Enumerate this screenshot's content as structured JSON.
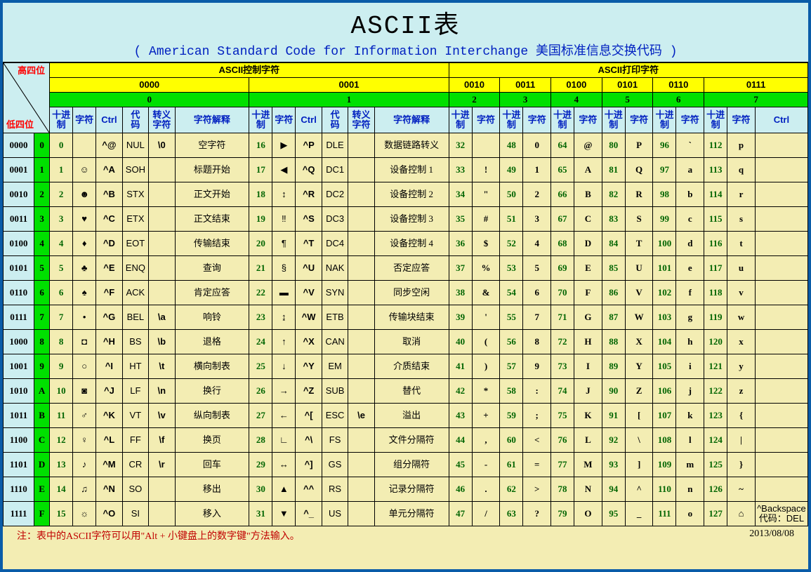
{
  "title": "ASCII表",
  "subtitle": "( American Standard Code for Information Interchange  美国标准信息交换代码 )",
  "corner": {
    "high": "高四位",
    "low": "低四位"
  },
  "sections": {
    "control_label": "ASCII控制字符",
    "print_label": "ASCII打印字符",
    "bin_groups": [
      "0000",
      "0001",
      "0010",
      "0011",
      "0100",
      "0101",
      "0110",
      "0111"
    ],
    "hex_groups": [
      "0",
      "1",
      "2",
      "3",
      "4",
      "5",
      "6",
      "7"
    ]
  },
  "col_headers": {
    "dec": "十进制",
    "char": "字符",
    "ctrl": "Ctrl",
    "code": "代码",
    "esc": "转义字符",
    "desc": "字符解释"
  },
  "row_headers": [
    {
      "bin": "0000",
      "hex": "0"
    },
    {
      "bin": "0001",
      "hex": "1"
    },
    {
      "bin": "0010",
      "hex": "2"
    },
    {
      "bin": "0011",
      "hex": "3"
    },
    {
      "bin": "0100",
      "hex": "4"
    },
    {
      "bin": "0101",
      "hex": "5"
    },
    {
      "bin": "0110",
      "hex": "6"
    },
    {
      "bin": "0111",
      "hex": "7"
    },
    {
      "bin": "1000",
      "hex": "8"
    },
    {
      "bin": "1001",
      "hex": "9"
    },
    {
      "bin": "1010",
      "hex": "A"
    },
    {
      "bin": "1011",
      "hex": "B"
    },
    {
      "bin": "1100",
      "hex": "C"
    },
    {
      "bin": "1101",
      "hex": "D"
    },
    {
      "bin": "1110",
      "hex": "E"
    },
    {
      "bin": "1111",
      "hex": "F"
    }
  ],
  "ctrl0": [
    {
      "dec": "0",
      "ch": "",
      "ctrl": "^@",
      "code": "NUL",
      "esc": "\\0",
      "desc": "空字符"
    },
    {
      "dec": "1",
      "ch": "☺",
      "ctrl": "^A",
      "code": "SOH",
      "esc": "",
      "desc": "标题开始"
    },
    {
      "dec": "2",
      "ch": "☻",
      "ctrl": "^B",
      "code": "STX",
      "esc": "",
      "desc": "正文开始"
    },
    {
      "dec": "3",
      "ch": "♥",
      "ctrl": "^C",
      "code": "ETX",
      "esc": "",
      "desc": "正文结束"
    },
    {
      "dec": "4",
      "ch": "♦",
      "ctrl": "^D",
      "code": "EOT",
      "esc": "",
      "desc": "传输结束"
    },
    {
      "dec": "5",
      "ch": "♣",
      "ctrl": "^E",
      "code": "ENQ",
      "esc": "",
      "desc": "查询"
    },
    {
      "dec": "6",
      "ch": "♠",
      "ctrl": "^F",
      "code": "ACK",
      "esc": "",
      "desc": "肯定应答"
    },
    {
      "dec": "7",
      "ch": "•",
      "ctrl": "^G",
      "code": "BEL",
      "esc": "\\a",
      "desc": "响铃"
    },
    {
      "dec": "8",
      "ch": "◘",
      "ctrl": "^H",
      "code": "BS",
      "esc": "\\b",
      "desc": "退格"
    },
    {
      "dec": "9",
      "ch": "○",
      "ctrl": "^I",
      "code": "HT",
      "esc": "\\t",
      "desc": "横向制表"
    },
    {
      "dec": "10",
      "ch": "◙",
      "ctrl": "^J",
      "code": "LF",
      "esc": "\\n",
      "desc": "换行"
    },
    {
      "dec": "11",
      "ch": "♂",
      "ctrl": "^K",
      "code": "VT",
      "esc": "\\v",
      "desc": "纵向制表"
    },
    {
      "dec": "12",
      "ch": "♀",
      "ctrl": "^L",
      "code": "FF",
      "esc": "\\f",
      "desc": "换页"
    },
    {
      "dec": "13",
      "ch": "♪",
      "ctrl": "^M",
      "code": "CR",
      "esc": "\\r",
      "desc": "回车"
    },
    {
      "dec": "14",
      "ch": "♫",
      "ctrl": "^N",
      "code": "SO",
      "esc": "",
      "desc": "移出"
    },
    {
      "dec": "15",
      "ch": "☼",
      "ctrl": "^O",
      "code": "SI",
      "esc": "",
      "desc": "移入"
    }
  ],
  "ctrl1": [
    {
      "dec": "16",
      "ch": "▶",
      "ctrl": "^P",
      "code": "DLE",
      "esc": "",
      "desc": "数据链路转义"
    },
    {
      "dec": "17",
      "ch": "◀",
      "ctrl": "^Q",
      "code": "DC1",
      "esc": "",
      "desc": "设备控制 1"
    },
    {
      "dec": "18",
      "ch": "↕",
      "ctrl": "^R",
      "code": "DC2",
      "esc": "",
      "desc": "设备控制 2"
    },
    {
      "dec": "19",
      "ch": "‼",
      "ctrl": "^S",
      "code": "DC3",
      "esc": "",
      "desc": "设备控制 3"
    },
    {
      "dec": "20",
      "ch": "¶",
      "ctrl": "^T",
      "code": "DC4",
      "esc": "",
      "desc": "设备控制 4"
    },
    {
      "dec": "21",
      "ch": "§",
      "ctrl": "^U",
      "code": "NAK",
      "esc": "",
      "desc": "否定应答"
    },
    {
      "dec": "22",
      "ch": "▬",
      "ctrl": "^V",
      "code": "SYN",
      "esc": "",
      "desc": "同步空闲"
    },
    {
      "dec": "23",
      "ch": "↨",
      "ctrl": "^W",
      "code": "ETB",
      "esc": "",
      "desc": "传输块结束"
    },
    {
      "dec": "24",
      "ch": "↑",
      "ctrl": "^X",
      "code": "CAN",
      "esc": "",
      "desc": "取消"
    },
    {
      "dec": "25",
      "ch": "↓",
      "ctrl": "^Y",
      "code": "EM",
      "esc": "",
      "desc": "介质结束"
    },
    {
      "dec": "26",
      "ch": "→",
      "ctrl": "^Z",
      "code": "SUB",
      "esc": "",
      "desc": "替代"
    },
    {
      "dec": "27",
      "ch": "←",
      "ctrl": "^[",
      "code": "ESC",
      "esc": "\\e",
      "desc": "溢出"
    },
    {
      "dec": "28",
      "ch": "∟",
      "ctrl": "^\\",
      "code": "FS",
      "esc": "",
      "desc": "文件分隔符"
    },
    {
      "dec": "29",
      "ch": "↔",
      "ctrl": "^]",
      "code": "GS",
      "esc": "",
      "desc": "组分隔符"
    },
    {
      "dec": "30",
      "ch": "▲",
      "ctrl": "^^",
      "code": "RS",
      "esc": "",
      "desc": "记录分隔符"
    },
    {
      "dec": "31",
      "ch": "▼",
      "ctrl": "^_",
      "code": "US",
      "esc": "",
      "desc": "单元分隔符"
    }
  ],
  "print": [
    [
      {
        "dec": "32",
        "ch": ""
      },
      {
        "dec": "48",
        "ch": "0"
      },
      {
        "dec": "64",
        "ch": "@"
      },
      {
        "dec": "80",
        "ch": "P"
      },
      {
        "dec": "96",
        "ch": "`"
      },
      {
        "dec": "112",
        "ch": "p"
      }
    ],
    [
      {
        "dec": "33",
        "ch": "!"
      },
      {
        "dec": "49",
        "ch": "1"
      },
      {
        "dec": "65",
        "ch": "A"
      },
      {
        "dec": "81",
        "ch": "Q"
      },
      {
        "dec": "97",
        "ch": "a"
      },
      {
        "dec": "113",
        "ch": "q"
      }
    ],
    [
      {
        "dec": "34",
        "ch": "\""
      },
      {
        "dec": "50",
        "ch": "2"
      },
      {
        "dec": "66",
        "ch": "B"
      },
      {
        "dec": "82",
        "ch": "R"
      },
      {
        "dec": "98",
        "ch": "b"
      },
      {
        "dec": "114",
        "ch": "r"
      }
    ],
    [
      {
        "dec": "35",
        "ch": "#"
      },
      {
        "dec": "51",
        "ch": "3"
      },
      {
        "dec": "67",
        "ch": "C"
      },
      {
        "dec": "83",
        "ch": "S"
      },
      {
        "dec": "99",
        "ch": "c"
      },
      {
        "dec": "115",
        "ch": "s"
      }
    ],
    [
      {
        "dec": "36",
        "ch": "$"
      },
      {
        "dec": "52",
        "ch": "4"
      },
      {
        "dec": "68",
        "ch": "D"
      },
      {
        "dec": "84",
        "ch": "T"
      },
      {
        "dec": "100",
        "ch": "d"
      },
      {
        "dec": "116",
        "ch": "t"
      }
    ],
    [
      {
        "dec": "37",
        "ch": "%"
      },
      {
        "dec": "53",
        "ch": "5"
      },
      {
        "dec": "69",
        "ch": "E"
      },
      {
        "dec": "85",
        "ch": "U"
      },
      {
        "dec": "101",
        "ch": "e"
      },
      {
        "dec": "117",
        "ch": "u"
      }
    ],
    [
      {
        "dec": "38",
        "ch": "&"
      },
      {
        "dec": "54",
        "ch": "6"
      },
      {
        "dec": "70",
        "ch": "F"
      },
      {
        "dec": "86",
        "ch": "V"
      },
      {
        "dec": "102",
        "ch": "f"
      },
      {
        "dec": "118",
        "ch": "v"
      }
    ],
    [
      {
        "dec": "39",
        "ch": "'"
      },
      {
        "dec": "55",
        "ch": "7"
      },
      {
        "dec": "71",
        "ch": "G"
      },
      {
        "dec": "87",
        "ch": "W"
      },
      {
        "dec": "103",
        "ch": "g"
      },
      {
        "dec": "119",
        "ch": "w"
      }
    ],
    [
      {
        "dec": "40",
        "ch": "("
      },
      {
        "dec": "56",
        "ch": "8"
      },
      {
        "dec": "72",
        "ch": "H"
      },
      {
        "dec": "88",
        "ch": "X"
      },
      {
        "dec": "104",
        "ch": "h"
      },
      {
        "dec": "120",
        "ch": "x"
      }
    ],
    [
      {
        "dec": "41",
        "ch": ")"
      },
      {
        "dec": "57",
        "ch": "9"
      },
      {
        "dec": "73",
        "ch": "I"
      },
      {
        "dec": "89",
        "ch": "Y"
      },
      {
        "dec": "105",
        "ch": "i"
      },
      {
        "dec": "121",
        "ch": "y"
      }
    ],
    [
      {
        "dec": "42",
        "ch": "*"
      },
      {
        "dec": "58",
        "ch": ":"
      },
      {
        "dec": "74",
        "ch": "J"
      },
      {
        "dec": "90",
        "ch": "Z"
      },
      {
        "dec": "106",
        "ch": "j"
      },
      {
        "dec": "122",
        "ch": "z"
      }
    ],
    [
      {
        "dec": "43",
        "ch": "+"
      },
      {
        "dec": "59",
        "ch": ";"
      },
      {
        "dec": "75",
        "ch": "K"
      },
      {
        "dec": "91",
        "ch": "["
      },
      {
        "dec": "107",
        "ch": "k"
      },
      {
        "dec": "123",
        "ch": "{"
      }
    ],
    [
      {
        "dec": "44",
        "ch": ","
      },
      {
        "dec": "60",
        "ch": "<"
      },
      {
        "dec": "76",
        "ch": "L"
      },
      {
        "dec": "92",
        "ch": "\\"
      },
      {
        "dec": "108",
        "ch": "l"
      },
      {
        "dec": "124",
        "ch": "|"
      }
    ],
    [
      {
        "dec": "45",
        "ch": "-"
      },
      {
        "dec": "61",
        "ch": "="
      },
      {
        "dec": "77",
        "ch": "M"
      },
      {
        "dec": "93",
        "ch": "]"
      },
      {
        "dec": "109",
        "ch": "m"
      },
      {
        "dec": "125",
        "ch": "}"
      }
    ],
    [
      {
        "dec": "46",
        "ch": "."
      },
      {
        "dec": "62",
        "ch": ">"
      },
      {
        "dec": "78",
        "ch": "N"
      },
      {
        "dec": "94",
        "ch": "^"
      },
      {
        "dec": "110",
        "ch": "n"
      },
      {
        "dec": "126",
        "ch": "~"
      }
    ],
    [
      {
        "dec": "47",
        "ch": "/"
      },
      {
        "dec": "63",
        "ch": "?"
      },
      {
        "dec": "79",
        "ch": "O"
      },
      {
        "dec": "95",
        "ch": "_"
      },
      {
        "dec": "111",
        "ch": "o"
      },
      {
        "dec": "127",
        "ch": "⌂"
      }
    ]
  ],
  "last_ctrl": "^Backspace\n代码：DEL",
  "footer": {
    "note": "注：表中的ASCII字符可以用\"Alt + 小键盘上的数字键\"方法输入。",
    "date": "2013/08/08"
  },
  "colors": {
    "border": "#0a5ca8",
    "body_bg": "#f3edb3",
    "aqua": "#cceef0",
    "yellow": "#ffff00",
    "green": "#00e000",
    "blue_text": "#0020c0",
    "green_text": "#006400",
    "red_text": "#c00000"
  }
}
